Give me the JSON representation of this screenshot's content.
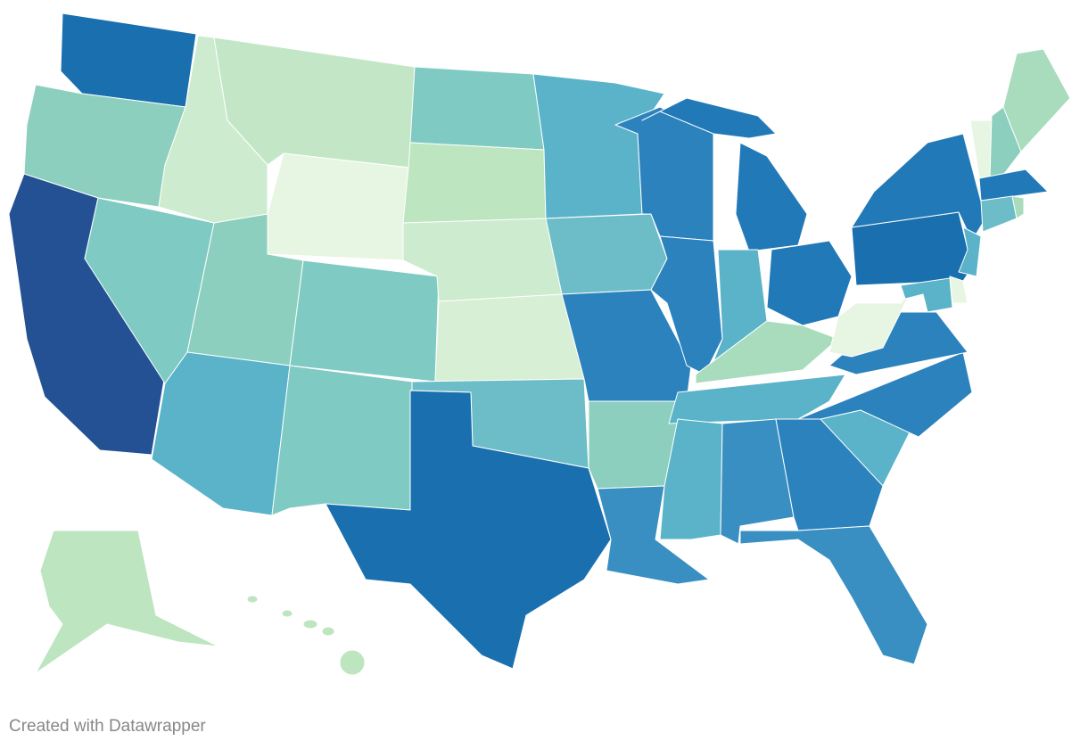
{
  "footer": {
    "credit": "Created with Datawrapper"
  }
}
